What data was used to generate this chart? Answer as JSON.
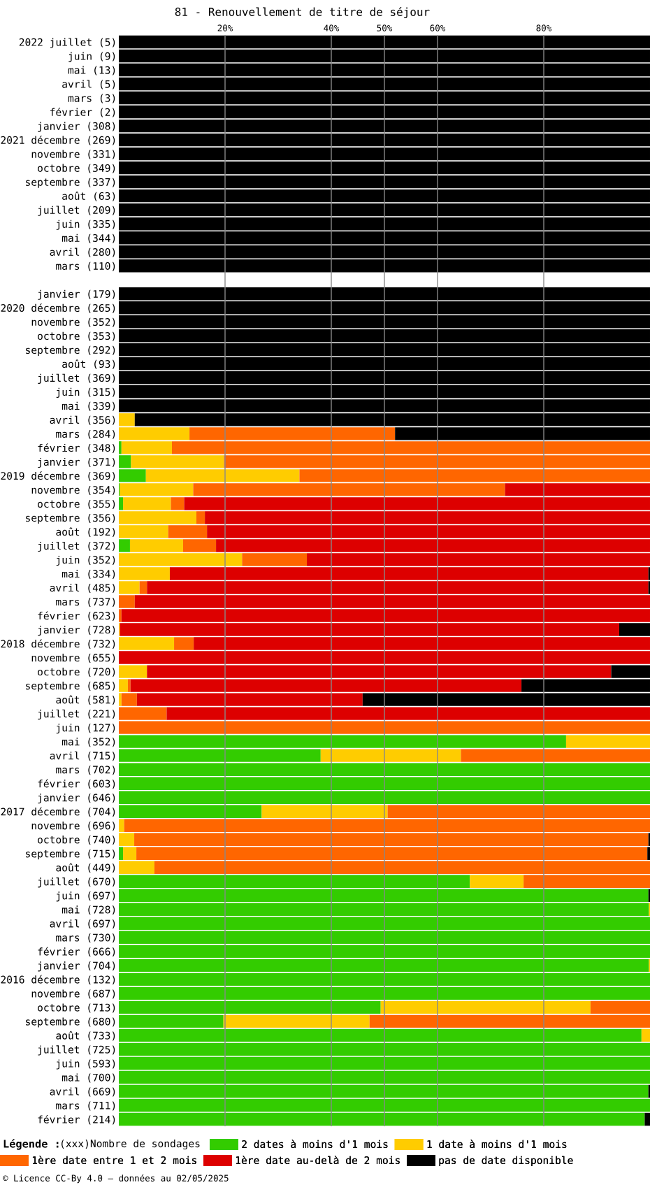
{
  "chart_data": {
    "type": "bar",
    "orientation": "horizontal",
    "stacked": true,
    "title": "81 - Renouvellement de titre de séjour",
    "legend_title": "Légende :",
    "annotations": [
      "(xxx)Nombre de sondages",
      "© Licence CC-By 4.0 — données au 02/05/2025"
    ],
    "categories": [
      "2022 juillet (5)",
      "juin (9)",
      "mai (13)",
      "avril (5)",
      "mars (3)",
      "février (2)",
      "janvier (308)",
      "2021 décembre (269)",
      "novembre (331)",
      "octobre (349)",
      "septembre (337)",
      "août (63)",
      "juillet (209)",
      "juin (335)",
      "mai (344)",
      "avril (280)",
      "mars (110)",
      null,
      "janvier (179)",
      "2020 décembre (265)",
      "novembre (352)",
      "octobre (353)",
      "septembre (292)",
      "août (93)",
      "juillet (369)",
      "juin (315)",
      "mai (339)",
      "avril (356)",
      "mars (284)",
      "février (348)",
      "janvier (371)",
      "2019 décembre (369)",
      "novembre (354)",
      "octobre (355)",
      "septembre (356)",
      "août (192)",
      "juillet (372)",
      "juin (352)",
      "mai (334)",
      "avril (485)",
      "mars (737)",
      "février (623)",
      "janvier (728)",
      "2018 décembre (732)",
      "novembre (655)",
      "octobre (720)",
      "septembre (685)",
      "août (581)",
      "juillet (221)",
      "juin (127)",
      "mai (352)",
      "avril (715)",
      "mars (702)",
      "février (603)",
      "janvier (646)",
      "2017 décembre (704)",
      "novembre (696)",
      "octobre (740)",
      "septembre (715)",
      "août (449)",
      "juillet (670)",
      "juin (697)",
      "mai (728)",
      "avril (697)",
      "mars (730)",
      "février (666)",
      "janvier (704)",
      "2016 décembre (132)",
      "novembre (687)",
      "octobre (713)",
      "septembre (680)",
      "août (733)",
      "juillet (725)",
      "juin (593)",
      "mai (700)",
      "avril (669)",
      "mars (711)",
      "février (214)"
    ],
    "series": [
      {
        "name": "2 dates à moins d'1 mois",
        "color": "#33cc00",
        "values": [
          0,
          0,
          0,
          0,
          0,
          0,
          0,
          0,
          0,
          0,
          0,
          0,
          0,
          0,
          0,
          0,
          0,
          null,
          0,
          0,
          0,
          0,
          0,
          0,
          0,
          0,
          0,
          0,
          0,
          0.5,
          2.3,
          5.1,
          0.2,
          0.8,
          0,
          0,
          2.1,
          0,
          0,
          0,
          0,
          0,
          0,
          0,
          0,
          0,
          0,
          0,
          0,
          0,
          84.2,
          38.0,
          100,
          100,
          100,
          26.9,
          0,
          0,
          0.8,
          0,
          66.1,
          99.7,
          99.8,
          100,
          100,
          100,
          99.8,
          100,
          100,
          49.3,
          19.7,
          98.4,
          100,
          100,
          100,
          99.7,
          100,
          99.0
        ]
      },
      {
        "name": "1 date à moins d'1 mois",
        "color": "#ffcc00",
        "values": [
          0,
          0,
          0,
          0,
          0,
          0,
          0,
          0,
          0,
          0,
          0,
          0,
          0,
          0,
          0,
          0,
          0,
          null,
          0,
          0,
          0,
          0,
          0,
          0,
          0,
          0,
          0,
          3.0,
          13.3,
          9.5,
          17.5,
          28.9,
          13.8,
          9.0,
          14.6,
          9.3,
          10.0,
          23.2,
          9.6,
          3.9,
          0,
          0,
          0.2,
          10.4,
          0,
          5.3,
          1.7,
          0.5,
          0,
          0,
          15.8,
          26.4,
          0,
          0,
          0,
          23.7,
          1.0,
          2.9,
          2.5,
          6.7,
          10.1,
          0,
          0.2,
          0,
          0,
          0,
          0.2,
          0,
          0,
          39.5,
          27.5,
          1.6,
          0,
          0,
          0,
          0,
          0,
          0
        ]
      },
      {
        "name": "1ère date entre 1 et 2 mois",
        "color": "#ff6600",
        "values": [
          0,
          0,
          0,
          0,
          0,
          0,
          0,
          0,
          0,
          0,
          0,
          0,
          0,
          0,
          0,
          0,
          0,
          null,
          0,
          0,
          0,
          0,
          0,
          0,
          0,
          0,
          0,
          0,
          38.7,
          90.0,
          80.2,
          66.0,
          58.7,
          2.5,
          1.6,
          7.3,
          6.2,
          12.2,
          0,
          1.4,
          3.0,
          0.5,
          0,
          3.7,
          0,
          0,
          0.5,
          2.9,
          9.0,
          100,
          0,
          35.6,
          0,
          0,
          0,
          49.4,
          99.0,
          96.8,
          96.2,
          93.3,
          23.8,
          0,
          0,
          0,
          0,
          0,
          0,
          0,
          0,
          11.2,
          52.8,
          0,
          0,
          0,
          0,
          0,
          0,
          0
        ]
      },
      {
        "name": "1ère date au-delà de 2 mois",
        "color": "#dd0000",
        "values": [
          0,
          0,
          0,
          0,
          0,
          0,
          0,
          0,
          0,
          0,
          0,
          0,
          0,
          0,
          0,
          0,
          0,
          null,
          0,
          0,
          0,
          0,
          0,
          0,
          0,
          0,
          0,
          0,
          0,
          0,
          0,
          0,
          27.3,
          87.7,
          83.8,
          83.4,
          81.7,
          64.6,
          90.1,
          94.4,
          97.0,
          99.5,
          94.0,
          85.9,
          100,
          87.4,
          73.6,
          42.5,
          91.0,
          0,
          0,
          0,
          0,
          0,
          0,
          0,
          0,
          0,
          0,
          0,
          0,
          0,
          0,
          0,
          0,
          0,
          0,
          0,
          0,
          0,
          0,
          0,
          0,
          0,
          0,
          0,
          0,
          0
        ]
      },
      {
        "name": "pas de date disponible",
        "color": "#000000",
        "values": [
          100,
          100,
          100,
          100,
          100,
          100,
          100,
          100,
          100,
          100,
          100,
          100,
          100,
          100,
          100,
          100,
          100,
          null,
          100,
          100,
          100,
          100,
          100,
          100,
          100,
          100,
          100,
          97.0,
          48.0,
          0,
          0,
          0,
          0,
          0,
          0,
          0,
          0,
          0,
          0.3,
          0.3,
          0,
          0,
          5.8,
          0,
          0,
          7.3,
          24.2,
          54.1,
          0,
          0,
          0,
          0,
          0,
          0,
          0,
          0,
          0,
          0.3,
          0.5,
          0,
          0,
          0.3,
          0,
          0,
          0,
          0,
          0,
          0,
          0,
          0,
          0,
          0,
          0,
          0,
          0,
          0.3,
          0,
          1.0
        ]
      }
    ],
    "xlim": [
      0,
      100
    ],
    "xticks": [
      {
        "value": 20,
        "label": "20%"
      },
      {
        "value": 40,
        "label": "40%"
      },
      {
        "value": 50,
        "label": "50%"
      },
      {
        "value": 60,
        "label": "60%"
      },
      {
        "value": 80,
        "label": "80%"
      }
    ],
    "grid": "x",
    "legend": "bottom"
  }
}
